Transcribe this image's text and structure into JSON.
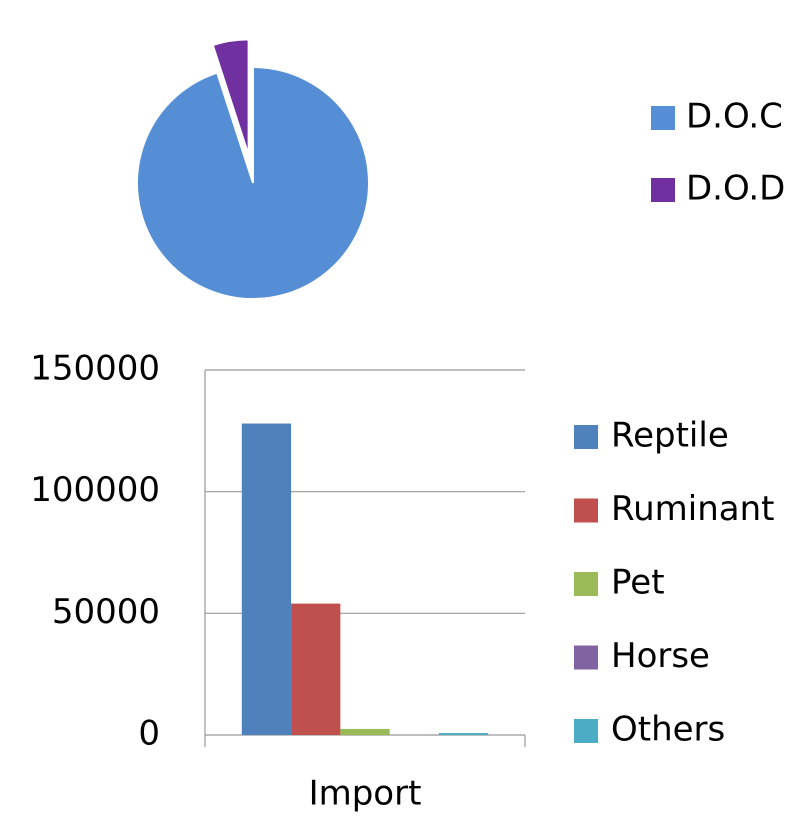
{
  "chart_data": [
    {
      "type": "pie",
      "series": [
        {
          "name": "D.O.C",
          "color": "#558ed5"
        },
        {
          "name": "D.O.D",
          "color": "#7030a0"
        }
      ],
      "values": [
        95,
        5
      ]
    },
    {
      "type": "bar",
      "categories": [
        "Import"
      ],
      "series": [
        {
          "name": "Reptile",
          "color": "#4f81bd",
          "values": [
            128000
          ]
        },
        {
          "name": "Ruminant",
          "color": "#c0504d",
          "values": [
            54000
          ]
        },
        {
          "name": "Pet",
          "color": "#9bbb59",
          "values": [
            2500
          ]
        },
        {
          "name": "Horse",
          "color": "#8064a2",
          "values": [
            0
          ]
        },
        {
          "name": "Others",
          "color": "#4bacc6",
          "values": [
            800
          ]
        }
      ],
      "ylim": [
        0,
        150000
      ],
      "yticks": [
        0,
        50000,
        100000,
        150000
      ],
      "grid": true
    }
  ]
}
